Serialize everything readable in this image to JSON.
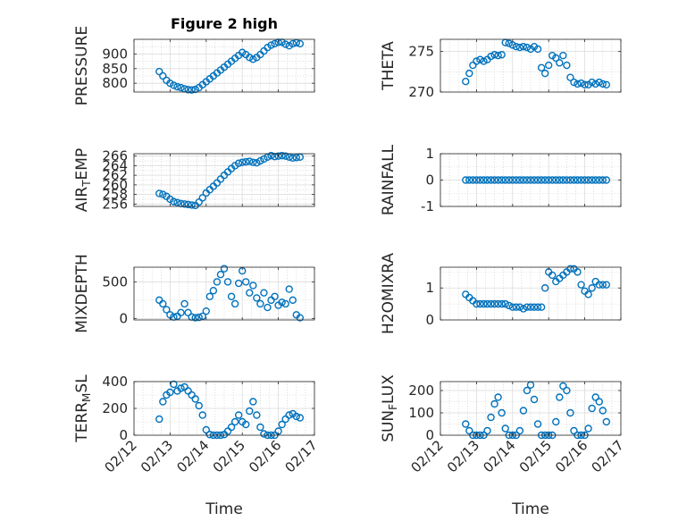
{
  "figure": {
    "title": "Figure 2 high",
    "xlabel": "Time",
    "xticks": [
      "02/12",
      "02/13",
      "02/14",
      "02/15",
      "02/16",
      "02/17"
    ],
    "marker_color": "#0072BD"
  },
  "chart_data": [
    {
      "type": "scatter",
      "ylabel": "PRESSURE",
      "ylim": [
        770,
        950
      ],
      "yticks": [
        "800",
        "850",
        "900"
      ],
      "x": [
        12.7,
        12.8,
        12.9,
        13.0,
        13.1,
        13.2,
        13.3,
        13.4,
        13.5,
        13.6,
        13.7,
        13.8,
        13.9,
        14.0,
        14.1,
        14.2,
        14.3,
        14.4,
        14.5,
        14.6,
        14.7,
        14.8,
        14.9,
        15.0,
        15.1,
        15.2,
        15.3,
        15.4,
        15.5,
        15.6,
        15.7,
        15.8,
        15.9,
        16.0,
        16.1,
        16.2,
        16.3,
        16.4,
        16.5,
        16.6
      ],
      "y": [
        840,
        825,
        810,
        800,
        793,
        788,
        785,
        781,
        778,
        777,
        779,
        785,
        795,
        805,
        815,
        825,
        835,
        845,
        855,
        865,
        875,
        885,
        895,
        905,
        898,
        888,
        882,
        888,
        898,
        910,
        922,
        930,
        935,
        940,
        940,
        933,
        928,
        935,
        938,
        935
      ]
    },
    {
      "type": "scatter",
      "ylabel": "THETA",
      "ylim": [
        270,
        276.5
      ],
      "yticks": [
        "270",
        "275"
      ],
      "x": [
        12.7,
        12.8,
        12.9,
        13.0,
        13.1,
        13.2,
        13.3,
        13.4,
        13.5,
        13.6,
        13.7,
        13.8,
        13.9,
        14.0,
        14.1,
        14.2,
        14.3,
        14.4,
        14.5,
        14.6,
        14.7,
        14.8,
        14.9,
        15.0,
        15.1,
        15.2,
        15.3,
        15.4,
        15.5,
        15.6,
        15.7,
        15.8,
        15.9,
        16.0,
        16.1,
        16.2,
        16.3,
        16.4,
        16.5,
        16.6
      ],
      "y": [
        271.3,
        272.3,
        273.3,
        273.8,
        274.0,
        273.8,
        274.0,
        274.4,
        274.6,
        274.5,
        274.6,
        276.1,
        276.0,
        275.8,
        275.6,
        275.5,
        275.6,
        275.5,
        275.3,
        275.6,
        275.3,
        273.0,
        272.3,
        273.3,
        274.5,
        274.2,
        273.6,
        274.5,
        273.3,
        271.8,
        271.2,
        271.0,
        271.1,
        270.9,
        270.9,
        271.2,
        271.0,
        271.2,
        271.0,
        270.9
      ]
    },
    {
      "type": "scatter",
      "ylabel": "AIR_TEMP",
      "ylim": [
        255.5,
        266.5
      ],
      "yticks": [
        "256",
        "258",
        "260",
        "262",
        "264",
        "266"
      ],
      "x": [
        12.7,
        12.8,
        12.9,
        13.0,
        13.1,
        13.2,
        13.3,
        13.4,
        13.5,
        13.6,
        13.7,
        13.8,
        13.9,
        14.0,
        14.1,
        14.2,
        14.3,
        14.4,
        14.5,
        14.6,
        14.7,
        14.8,
        14.9,
        15.0,
        15.1,
        15.2,
        15.3,
        15.4,
        15.5,
        15.6,
        15.7,
        15.8,
        15.9,
        16.0,
        16.1,
        16.2,
        16.3,
        16.4,
        16.5,
        16.6
      ],
      "y": [
        258.2,
        258.0,
        257.6,
        257.0,
        256.5,
        256.3,
        256.1,
        256.0,
        255.9,
        255.8,
        255.7,
        256.4,
        257.3,
        258.3,
        259.0,
        259.7,
        260.4,
        261.2,
        262.0,
        262.7,
        263.4,
        264.0,
        264.5,
        264.7,
        264.8,
        264.9,
        264.7,
        264.6,
        265.0,
        265.4,
        265.8,
        266.1,
        265.9,
        266.0,
        266.1,
        266.0,
        265.8,
        265.6,
        265.7,
        265.8
      ]
    },
    {
      "type": "scatter",
      "ylabel": "RAINFALL",
      "ylim": [
        -1,
        1
      ],
      "yticks": [
        "-1",
        "0",
        "1"
      ],
      "x": [
        12.7,
        12.8,
        12.9,
        13.0,
        13.1,
        13.2,
        13.3,
        13.4,
        13.5,
        13.6,
        13.7,
        13.8,
        13.9,
        14.0,
        14.1,
        14.2,
        14.3,
        14.4,
        14.5,
        14.6,
        14.7,
        14.8,
        14.9,
        15.0,
        15.1,
        15.2,
        15.3,
        15.4,
        15.5,
        15.6,
        15.7,
        15.8,
        15.9,
        16.0,
        16.1,
        16.2,
        16.3,
        16.4,
        16.5,
        16.6
      ],
      "y": [
        0,
        0,
        0,
        0,
        0,
        0,
        0,
        0,
        0,
        0,
        0,
        0,
        0,
        0,
        0,
        0,
        0,
        0,
        0,
        0,
        0,
        0,
        0,
        0,
        0,
        0,
        0,
        0,
        0,
        0,
        0,
        0,
        0,
        0,
        0,
        0,
        0,
        0,
        0,
        0
      ]
    },
    {
      "type": "scatter",
      "ylabel": "MIXDEPTH",
      "ylim": [
        -20,
        700
      ],
      "yticks": [
        "0",
        "500"
      ],
      "x": [
        12.7,
        12.8,
        12.9,
        13.0,
        13.1,
        13.2,
        13.3,
        13.4,
        13.5,
        13.6,
        13.7,
        13.8,
        13.9,
        14.0,
        14.1,
        14.2,
        14.3,
        14.4,
        14.5,
        14.6,
        14.7,
        14.8,
        14.9,
        15.0,
        15.1,
        15.2,
        15.3,
        15.4,
        15.5,
        15.6,
        15.7,
        15.8,
        15.9,
        16.0,
        16.1,
        16.2,
        16.3,
        16.4,
        16.5,
        16.6
      ],
      "y": [
        250,
        200,
        120,
        50,
        20,
        30,
        80,
        200,
        80,
        20,
        10,
        15,
        30,
        100,
        300,
        380,
        500,
        600,
        680,
        500,
        300,
        200,
        480,
        650,
        500,
        350,
        450,
        280,
        200,
        350,
        150,
        250,
        300,
        180,
        220,
        200,
        400,
        250,
        50,
        10
      ]
    },
    {
      "type": "scatter",
      "ylabel": "H2OMIXRA",
      "ylim": [
        0,
        1.65
      ],
      "yticks": [
        "0",
        "1"
      ],
      "x": [
        12.7,
        12.8,
        12.9,
        13.0,
        13.1,
        13.2,
        13.3,
        13.4,
        13.5,
        13.6,
        13.7,
        13.8,
        13.9,
        14.0,
        14.1,
        14.2,
        14.3,
        14.4,
        14.5,
        14.6,
        14.7,
        14.8,
        14.9,
        15.0,
        15.1,
        15.2,
        15.3,
        15.4,
        15.5,
        15.6,
        15.7,
        15.8,
        15.9,
        16.0,
        16.1,
        16.2,
        16.3,
        16.4,
        16.5,
        16.6
      ],
      "y": [
        0.8,
        0.7,
        0.6,
        0.5,
        0.5,
        0.5,
        0.5,
        0.5,
        0.5,
        0.5,
        0.5,
        0.5,
        0.45,
        0.4,
        0.4,
        0.4,
        0.35,
        0.4,
        0.4,
        0.4,
        0.4,
        0.4,
        1.0,
        1.5,
        1.4,
        1.2,
        1.3,
        1.4,
        1.5,
        1.6,
        1.6,
        1.5,
        1.1,
        0.9,
        0.8,
        1.0,
        1.2,
        1.1,
        1.1,
        1.1
      ]
    },
    {
      "type": "scatter",
      "ylabel": "TERR_MSL",
      "ylim": [
        0,
        400
      ],
      "yticks": [
        "0",
        "200",
        "400"
      ],
      "x": [
        12.7,
        12.8,
        12.9,
        13.0,
        13.1,
        13.2,
        13.3,
        13.4,
        13.5,
        13.6,
        13.7,
        13.8,
        13.9,
        14.0,
        14.1,
        14.2,
        14.3,
        14.4,
        14.5,
        14.6,
        14.7,
        14.8,
        14.9,
        15.0,
        15.1,
        15.2,
        15.3,
        15.4,
        15.5,
        15.6,
        15.7,
        15.8,
        15.9,
        16.0,
        16.1,
        16.2,
        16.3,
        16.4,
        16.5,
        16.6
      ],
      "y": [
        120,
        250,
        300,
        320,
        380,
        330,
        350,
        360,
        330,
        300,
        270,
        220,
        150,
        40,
        5,
        0,
        0,
        0,
        5,
        30,
        60,
        100,
        150,
        100,
        80,
        180,
        250,
        150,
        60,
        10,
        0,
        0,
        0,
        30,
        80,
        120,
        150,
        160,
        140,
        130
      ]
    },
    {
      "type": "scatter",
      "ylabel": "SUN_FLUX",
      "ylim": [
        0,
        240
      ],
      "yticks": [
        "0",
        "100",
        "200"
      ],
      "x": [
        12.7,
        12.8,
        12.9,
        13.0,
        13.1,
        13.2,
        13.3,
        13.4,
        13.5,
        13.6,
        13.7,
        13.8,
        13.9,
        14.0,
        14.1,
        14.2,
        14.3,
        14.4,
        14.5,
        14.6,
        14.7,
        14.8,
        14.9,
        15.0,
        15.1,
        15.2,
        15.3,
        15.4,
        15.5,
        15.6,
        15.7,
        15.8,
        15.9,
        16.0,
        16.1,
        16.2,
        16.3,
        16.4,
        16.5,
        16.6
      ],
      "y": [
        50,
        20,
        0,
        0,
        0,
        0,
        20,
        80,
        140,
        170,
        100,
        30,
        0,
        0,
        0,
        20,
        110,
        200,
        225,
        160,
        50,
        0,
        0,
        0,
        0,
        60,
        170,
        220,
        200,
        100,
        20,
        0,
        0,
        0,
        30,
        120,
        170,
        150,
        110,
        60
      ]
    }
  ]
}
